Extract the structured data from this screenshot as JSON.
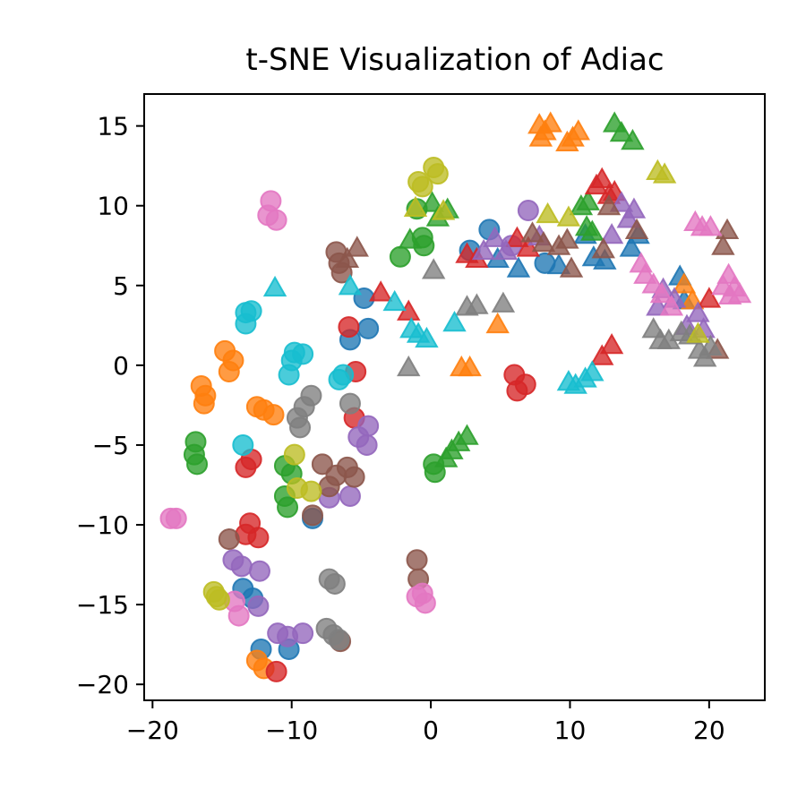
{
  "chart_data": {
    "type": "scatter",
    "title": "t-SNE Visualization of Adiac",
    "xlabel": "",
    "ylabel": "",
    "xlim": [
      -20.6,
      24
    ],
    "ylim": [
      -21,
      17
    ],
    "x_ticks": [
      -20,
      -10,
      0,
      10,
      20
    ],
    "y_ticks": [
      -20,
      -15,
      -10,
      -5,
      0,
      5,
      10,
      15
    ],
    "x_tick_labels": [
      "−20",
      "−10",
      "0",
      "10",
      "20"
    ],
    "y_tick_labels": [
      "−20",
      "−15",
      "−10",
      "−5",
      "0",
      "5",
      "10",
      "15"
    ],
    "grid": false,
    "legend": "none",
    "colors": [
      "#1f77b4",
      "#ff7f0e",
      "#2ca02c",
      "#d62728",
      "#9467bd",
      "#8c564b",
      "#e377c2",
      "#7f7f7f",
      "#bcbd22",
      "#17becf"
    ],
    "series": [
      {
        "marker": "circle",
        "color": "#1f77b4",
        "points": [
          [
            -4.8,
            4.2
          ],
          [
            -4.5,
            2.3
          ],
          [
            -5.8,
            1.6
          ],
          [
            -13.5,
            -14.0
          ],
          [
            -12.8,
            -14.6
          ],
          [
            -12.2,
            -17.8
          ],
          [
            -10.2,
            -17.8
          ],
          [
            -8.5,
            -9.6
          ],
          [
            4.2,
            8.5
          ],
          [
            2.8,
            7.2
          ],
          [
            8.2,
            6.4
          ]
        ]
      },
      {
        "marker": "circle",
        "color": "#ff7f0e",
        "points": [
          [
            -14.8,
            0.9
          ],
          [
            -14.2,
            0.3
          ],
          [
            -14.5,
            -0.4
          ],
          [
            -16.5,
            -1.3
          ],
          [
            -16.2,
            -1.9
          ],
          [
            -16.3,
            -2.4
          ],
          [
            -12.5,
            -2.6
          ],
          [
            -12.0,
            -2.8
          ],
          [
            -11.3,
            -3.1
          ],
          [
            -12.5,
            -18.5
          ],
          [
            -12.0,
            -19.0
          ]
        ]
      },
      {
        "marker": "circle",
        "color": "#2ca02c",
        "points": [
          [
            -16.9,
            -4.8
          ],
          [
            -17.0,
            -5.6
          ],
          [
            -16.8,
            -6.2
          ],
          [
            -10.5,
            -6.3
          ],
          [
            -10.0,
            -6.8
          ],
          [
            -10.5,
            -8.2
          ],
          [
            -10.3,
            -8.9
          ],
          [
            -0.6,
            8.0
          ],
          [
            -1.0,
            9.8
          ],
          [
            -2.2,
            6.8
          ],
          [
            0.2,
            -6.2
          ],
          [
            0.3,
            -6.7
          ],
          [
            -0.5,
            7.5
          ]
        ]
      },
      {
        "marker": "circle",
        "color": "#d62728",
        "points": [
          [
            -5.9,
            2.4
          ],
          [
            -5.4,
            -0.4
          ],
          [
            -5.5,
            -3.3
          ],
          [
            -12.9,
            -5.9
          ],
          [
            -13.3,
            -6.4
          ],
          [
            -13.0,
            -9.9
          ],
          [
            -13.3,
            -10.6
          ],
          [
            -12.4,
            -10.8
          ],
          [
            -11.1,
            -19.2
          ],
          [
            6.0,
            -0.6
          ],
          [
            6.2,
            -1.6
          ],
          [
            6.8,
            -1.2
          ]
        ]
      },
      {
        "marker": "circle",
        "color": "#9467bd",
        "points": [
          [
            -14.2,
            -12.2
          ],
          [
            -13.6,
            -12.6
          ],
          [
            -12.3,
            -12.9
          ],
          [
            -12.4,
            -15.1
          ],
          [
            -11.0,
            -16.8
          ],
          [
            -10.3,
            -17.0
          ],
          [
            -9.2,
            -16.8
          ],
          [
            -4.5,
            -3.8
          ],
          [
            -5.2,
            -4.5
          ],
          [
            -4.6,
            -5.0
          ],
          [
            -7.3,
            -8.3
          ],
          [
            -5.8,
            -8.2
          ],
          [
            7.0,
            9.7
          ],
          [
            5.8,
            7.5
          ]
        ]
      },
      {
        "marker": "circle",
        "color": "#8c564b",
        "points": [
          [
            -6.8,
            7.1
          ],
          [
            -6.6,
            6.4
          ],
          [
            -6.4,
            5.8
          ],
          [
            -14.5,
            -10.9
          ],
          [
            -8.5,
            -9.4
          ],
          [
            -7.8,
            -6.2
          ],
          [
            -6.8,
            -6.9
          ],
          [
            -6.0,
            -6.4
          ],
          [
            -5.5,
            -7.0
          ],
          [
            -7.3,
            -7.6
          ],
          [
            -6.5,
            -17.3
          ],
          [
            -1.0,
            -12.2
          ],
          [
            -0.9,
            -13.4
          ]
        ]
      },
      {
        "marker": "circle",
        "color": "#e377c2",
        "points": [
          [
            -11.5,
            10.3
          ],
          [
            -11.7,
            9.4
          ],
          [
            -11.1,
            9.1
          ],
          [
            -18.3,
            -9.6
          ],
          [
            -18.7,
            -9.6
          ],
          [
            -14.1,
            -14.8
          ],
          [
            -13.8,
            -15.7
          ],
          [
            -1.0,
            -14.5
          ],
          [
            -0.4,
            -14.9
          ],
          [
            -0.6,
            -14.3
          ]
        ]
      },
      {
        "marker": "circle",
        "color": "#7f7f7f",
        "points": [
          [
            -8.6,
            -1.9
          ],
          [
            -9.1,
            -2.6
          ],
          [
            -9.6,
            -3.3
          ],
          [
            -9.4,
            -3.9
          ],
          [
            -5.8,
            -2.4
          ],
          [
            -7.3,
            -13.4
          ],
          [
            -6.9,
            -13.7
          ],
          [
            -7.5,
            -16.5
          ],
          [
            -7.0,
            -16.9
          ],
          [
            -6.6,
            -17.2
          ]
        ]
      },
      {
        "marker": "circle",
        "color": "#bcbd22",
        "points": [
          [
            0.2,
            12.4
          ],
          [
            0.5,
            12.0
          ],
          [
            -0.9,
            11.5
          ],
          [
            -0.6,
            11.2
          ],
          [
            -9.8,
            -5.6
          ],
          [
            -9.6,
            -7.7
          ],
          [
            -8.6,
            -7.9
          ],
          [
            -15.6,
            -14.2
          ],
          [
            -15.2,
            -14.7
          ],
          [
            -15.4,
            -14.5
          ]
        ]
      },
      {
        "marker": "circle",
        "color": "#17becf",
        "points": [
          [
            -13.3,
            3.3
          ],
          [
            -13.3,
            2.6
          ],
          [
            -12.9,
            3.4
          ],
          [
            -9.8,
            0.8
          ],
          [
            -10.0,
            0.3
          ],
          [
            -9.2,
            0.7
          ],
          [
            -10.2,
            -0.6
          ],
          [
            -6.3,
            -0.6
          ],
          [
            -6.6,
            -0.9
          ],
          [
            -13.5,
            -5.0
          ]
        ]
      },
      {
        "marker": "triangle",
        "color": "#1f77b4",
        "points": [
          [
            11.1,
            8.1
          ],
          [
            11.7,
            6.7
          ],
          [
            12.5,
            6.5
          ],
          [
            14.4,
            7.3
          ],
          [
            14.9,
            8.1
          ],
          [
            9.2,
            6.2
          ],
          [
            4.8,
            6.6
          ],
          [
            6.3,
            6.0
          ],
          [
            17.9,
            5.5
          ],
          [
            18.2,
            4.0
          ]
        ]
      },
      {
        "marker": "triangle",
        "color": "#ff7f0e",
        "points": [
          [
            7.8,
            15.0
          ],
          [
            8.2,
            14.6
          ],
          [
            7.9,
            14.2
          ],
          [
            8.6,
            15.1
          ],
          [
            9.8,
            13.9
          ],
          [
            10.2,
            14.2
          ],
          [
            10.6,
            14.6
          ],
          [
            2.2,
            -0.2
          ],
          [
            2.8,
            -0.2
          ],
          [
            4.8,
            2.5
          ],
          [
            18.2,
            5.0
          ],
          [
            18.8,
            4.0
          ]
        ]
      },
      {
        "marker": "triangle",
        "color": "#2ca02c",
        "points": [
          [
            13.2,
            15.1
          ],
          [
            13.7,
            14.5
          ],
          [
            14.5,
            14.0
          ],
          [
            10.8,
            9.9
          ],
          [
            11.2,
            8.6
          ],
          [
            11.6,
            8.3
          ],
          [
            0.1,
            10.1
          ],
          [
            0.5,
            9.2
          ],
          [
            1.2,
            9.7
          ],
          [
            -1.5,
            7.8
          ],
          [
            2.0,
            -4.9
          ],
          [
            1.5,
            -5.4
          ],
          [
            1.1,
            -5.9
          ],
          [
            2.6,
            -4.5
          ],
          [
            11.3,
            10.2
          ]
        ]
      },
      {
        "marker": "triangle",
        "color": "#d62728",
        "points": [
          [
            11.9,
            11.2
          ],
          [
            12.3,
            11.6
          ],
          [
            12.8,
            10.6
          ],
          [
            13.2,
            10.8
          ],
          [
            2.6,
            6.9
          ],
          [
            3.3,
            6.6
          ],
          [
            6.2,
            7.9
          ],
          [
            7.0,
            7.3
          ],
          [
            -1.6,
            3.3
          ],
          [
            -3.6,
            4.5
          ],
          [
            12.3,
            0.5
          ],
          [
            13.0,
            1.2
          ],
          [
            20.0,
            4.1
          ]
        ]
      },
      {
        "marker": "triangle",
        "color": "#9467bd",
        "points": [
          [
            13.7,
            10.1
          ],
          [
            14.2,
            9.1
          ],
          [
            14.6,
            9.7
          ],
          [
            13.0,
            8.1
          ],
          [
            16.7,
            4.7
          ],
          [
            17.5,
            4.1
          ],
          [
            19.2,
            3.2
          ],
          [
            18.4,
            2.4
          ],
          [
            19.6,
            2.2
          ],
          [
            3.8,
            7.1
          ],
          [
            4.6,
            7.9
          ],
          [
            5.4,
            7.1
          ],
          [
            7.8,
            8.0
          ],
          [
            16.3,
            3.6
          ]
        ]
      },
      {
        "marker": "triangle",
        "color": "#8c564b",
        "points": [
          [
            7.3,
            8.2
          ],
          [
            8.1,
            7.6
          ],
          [
            9.2,
            7.4
          ],
          [
            9.8,
            7.8
          ],
          [
            10.1,
            6.0
          ],
          [
            12.4,
            7.2
          ],
          [
            12.8,
            9.9
          ],
          [
            14.8,
            8.4
          ],
          [
            21.3,
            8.4
          ],
          [
            21.0,
            7.4
          ],
          [
            -5.3,
            7.3
          ],
          [
            -6.0,
            6.6
          ],
          [
            20.6,
            0.9
          ]
        ]
      },
      {
        "marker": "triangle",
        "color": "#e377c2",
        "points": [
          [
            19.0,
            8.9
          ],
          [
            19.5,
            8.6
          ],
          [
            20.1,
            8.6
          ],
          [
            15.1,
            6.3
          ],
          [
            15.4,
            5.6
          ],
          [
            16.0,
            5.0
          ],
          [
            16.6,
            4.4
          ],
          [
            21.4,
            5.6
          ],
          [
            21.8,
            4.8
          ],
          [
            22.2,
            4.4
          ],
          [
            21.0,
            4.9
          ],
          [
            21.5,
            4.3
          ],
          [
            17.3,
            3.6
          ]
        ]
      },
      {
        "marker": "triangle",
        "color": "#7f7f7f",
        "points": [
          [
            16.0,
            2.2
          ],
          [
            16.5,
            1.5
          ],
          [
            17.1,
            1.5
          ],
          [
            18.0,
            2.0
          ],
          [
            18.6,
            1.8
          ],
          [
            19.3,
            0.9
          ],
          [
            20.1,
            1.1
          ],
          [
            19.7,
            0.4
          ],
          [
            0.2,
            5.9
          ],
          [
            2.6,
            3.6
          ],
          [
            3.3,
            3.7
          ],
          [
            5.2,
            3.8
          ],
          [
            -1.6,
            -0.2
          ]
        ]
      },
      {
        "marker": "triangle",
        "color": "#bcbd22",
        "points": [
          [
            16.3,
            12.1
          ],
          [
            16.8,
            11.9
          ],
          [
            9.9,
            9.2
          ],
          [
            8.4,
            9.4
          ],
          [
            0.9,
            9.6
          ],
          [
            -1.1,
            9.8
          ],
          [
            19.2,
            1.9
          ]
        ]
      },
      {
        "marker": "triangle",
        "color": "#17becf",
        "points": [
          [
            -5.8,
            4.9
          ],
          [
            -1.4,
            2.2
          ],
          [
            -0.9,
            1.9
          ],
          [
            -0.3,
            1.6
          ],
          [
            1.7,
            2.6
          ],
          [
            9.9,
            -1.1
          ],
          [
            10.4,
            -1.3
          ],
          [
            11.1,
            -0.9
          ],
          [
            11.6,
            -0.5
          ],
          [
            -11.2,
            4.8
          ],
          [
            -2.6,
            3.9
          ]
        ]
      }
    ]
  }
}
